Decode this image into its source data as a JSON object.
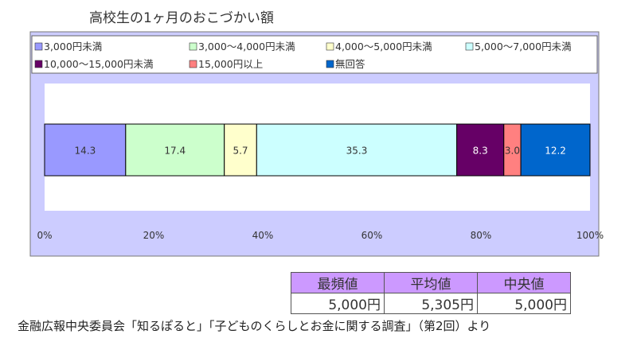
{
  "chart_data": {
    "type": "bar",
    "orientation": "horizontal",
    "stacked": "100%",
    "title": "高校生の1ヶ月のおこづかい額",
    "series": [
      {
        "name": "3,000円未満",
        "value": 14.3,
        "color": "#9999ff"
      },
      {
        "name": "3,000〜4,000円未満",
        "value": 17.4,
        "color": "#ccffcc"
      },
      {
        "name": "4,000〜5,000円未満",
        "value": 5.7,
        "color": "#ffffcc"
      },
      {
        "name": "5,000〜7,000円未満",
        "value": 35.3,
        "color": "#ccffff"
      },
      {
        "name": "10,000〜15,000円未満",
        "value": 8.3,
        "color": "#660066"
      },
      {
        "name": "15,000円以上",
        "value": 3.0,
        "color": "#ff8080"
      },
      {
        "name": "無回答",
        "value": 12.2,
        "color": "#0066cc"
      }
    ],
    "data_labels": [
      "14.3",
      "17.4",
      "5.7",
      "35.3",
      "8.3",
      "3.0",
      "12.2"
    ],
    "x_ticks": [
      "0%",
      "20%",
      "40%",
      "60%",
      "80%",
      "100%"
    ],
    "xlim": [
      0,
      100
    ],
    "legend_placement": "top",
    "background_color": "#ccccff"
  },
  "stats_table": {
    "headers": [
      "最頻値",
      "平均値",
      "中央値"
    ],
    "values": [
      "5,000円",
      "5,305円",
      "5,000円"
    ]
  },
  "source": "金融広報中央委員会「知るぽると」「子どものくらしとお金に関する調査」（第2回）より"
}
